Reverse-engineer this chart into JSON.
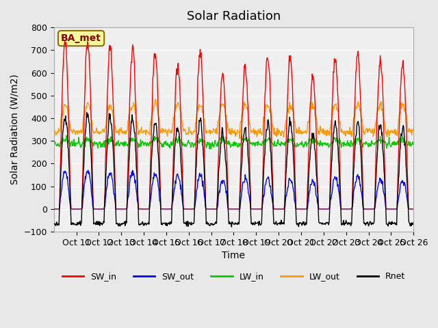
{
  "title": "Solar Radiation",
  "ylabel": "Solar Radiation (W/m2)",
  "xlabel": "Time",
  "n_days": 16,
  "ylim": [
    -100,
    800
  ],
  "yticks": [
    -100,
    0,
    100,
    200,
    300,
    400,
    500,
    600,
    700,
    800
  ],
  "xtick_labels": [
    "Oct 11",
    "Oct 12",
    "Oct 13",
    "Oct 14",
    "Oct 15",
    "Oct 16",
    "Oct 17",
    "Oct 18",
    "Oct 19",
    "Oct 20",
    "Oct 21",
    "Oct 22",
    "Oct 23",
    "Oct 24",
    "Oct 25",
    "Oct 26"
  ],
  "station_label": "BA_met",
  "colors": {
    "SW_in": "#ff0000",
    "SW_out": "#0000ff",
    "LW_in": "#00cc00",
    "LW_out": "#ff9900",
    "Rnet": "#000000"
  },
  "sw_in_peaks": [
    730,
    740,
    710,
    710,
    685,
    640,
    695,
    590,
    620,
    670,
    670,
    580,
    670,
    680,
    650,
    640
  ],
  "sw_out_peaks": [
    165,
    165,
    160,
    160,
    150,
    145,
    145,
    125,
    130,
    135,
    130,
    120,
    135,
    140,
    130,
    130
  ],
  "background_color": "#e8e8e8",
  "plot_bg_color": "#f0f0f0",
  "title_fontsize": 13,
  "label_fontsize": 10,
  "tick_fontsize": 9
}
